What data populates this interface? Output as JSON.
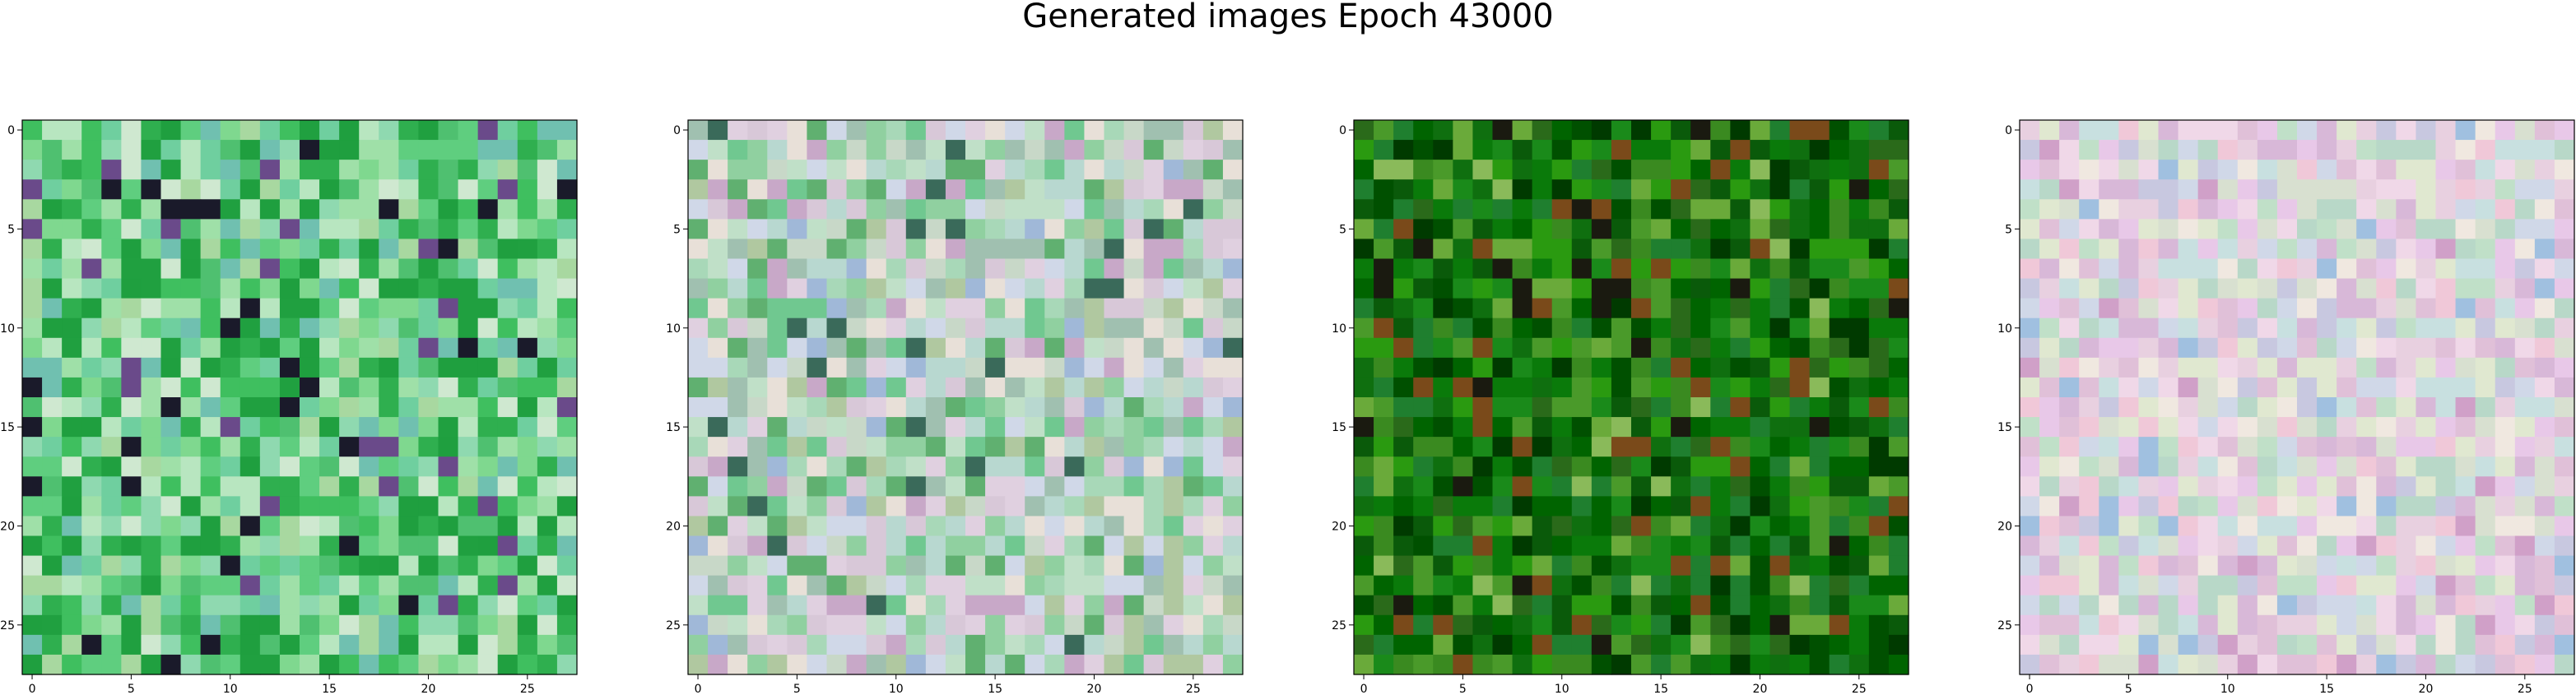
{
  "figure": {
    "title": "Generated images Epoch 43000"
  },
  "panels": [
    {
      "name": "generated-image-1",
      "palette": "light-green",
      "x_ticks": [
        "0",
        "5",
        "10",
        "15",
        "20",
        "25"
      ],
      "y_ticks": [
        "0",
        "5",
        "10",
        "15",
        "20",
        "25"
      ]
    },
    {
      "name": "generated-image-2",
      "palette": "pastel-mixed",
      "x_ticks": [
        "0",
        "5",
        "10",
        "15",
        "20",
        "25"
      ],
      "y_ticks": [
        "0",
        "5",
        "10",
        "15",
        "20",
        "25"
      ]
    },
    {
      "name": "generated-image-3",
      "palette": "dark-green",
      "x_ticks": [
        "0",
        "5",
        "10",
        "15",
        "20",
        "25"
      ],
      "y_ticks": [
        "0",
        "5",
        "10",
        "15",
        "20",
        "25"
      ]
    },
    {
      "name": "generated-image-4",
      "palette": "pastel-pink",
      "x_ticks": [
        "0",
        "5",
        "10",
        "15",
        "20",
        "25"
      ],
      "y_ticks": [
        "0",
        "5",
        "10",
        "15",
        "20",
        "25"
      ]
    }
  ],
  "image_grid": {
    "rows": 28,
    "cols": 28
  },
  "colors": {
    "light-green": [
      "#5fce7f",
      "#7fd88f",
      "#3fbf5f",
      "#9fe0a8",
      "#b8e6c0",
      "#2faf4f",
      "#6fcf9f",
      "#8fd9b0",
      "#4fc070",
      "#1f9f3f",
      "#a8d8a0",
      "#cfe8d0",
      "#20a040",
      "#70c0b0",
      "#1a1a2a",
      "#6a4a8a"
    ],
    "pastel-mixed": [
      "#c8d8c8",
      "#a8d8b8",
      "#d8c8d8",
      "#b8d8d0",
      "#90d0a0",
      "#e0d0e0",
      "#a0c0b0",
      "#c0e0c8",
      "#70c890",
      "#d0d8e8",
      "#b0c8a0",
      "#e8e0d8",
      "#60b070",
      "#c8a8c8",
      "#3a6a5a",
      "#a0b8d8"
    ],
    "dark-green": [
      "#0a7a0a",
      "#1a8a1a",
      "#006400",
      "#2a9a10",
      "#0f6f0f",
      "#3a8a20",
      "#005000",
      "#1f7f2f",
      "#4a9a2a",
      "#0a5a0a",
      "#2a6a1a",
      "#6aaa3a",
      "#003a00",
      "#7a4a1a",
      "#8aba5a",
      "#1a1a10"
    ],
    "pastel-pink": [
      "#e8d0e0",
      "#d8e0d0",
      "#f0d8e8",
      "#c8e0e0",
      "#e0c0d8",
      "#d0d8e8",
      "#f0e8e0",
      "#e8c8e8",
      "#c0e0c8",
      "#d8b8d8",
      "#e0e8d0",
      "#c8c8e0",
      "#f0c8d8",
      "#b8d8c8",
      "#d0a0c8",
      "#a0c0e0"
    ]
  }
}
